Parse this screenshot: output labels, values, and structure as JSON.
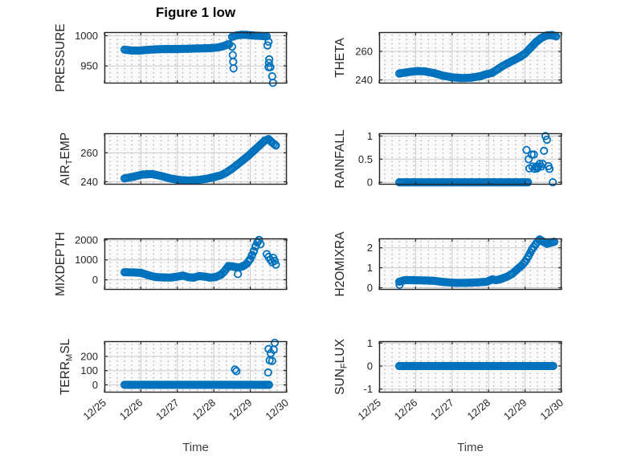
{
  "figure": {
    "title": "Figure 1 low",
    "colors": {
      "marker": "#0072BD",
      "axis": "#262626",
      "grid": "#cccccc"
    },
    "x_axis": {
      "label": "Time",
      "lim": [
        25,
        30
      ],
      "ticks": [
        {
          "v": 25,
          "label": "12/25"
        },
        {
          "v": 26,
          "label": "12/26"
        },
        {
          "v": 27,
          "label": "12/27"
        },
        {
          "v": 28,
          "label": "12/28"
        },
        {
          "v": 29,
          "label": "12/29"
        },
        {
          "v": 30,
          "label": "12/30"
        }
      ]
    }
  },
  "chart_data": [
    {
      "type": "scatter",
      "name": "PRESSURE",
      "ylabel_parts": [
        {
          "t": "PRESSURE"
        }
      ],
      "ylim": [
        921,
        1006
      ],
      "yticks": [
        {
          "v": 950,
          "label": "950"
        },
        {
          "v": 1000,
          "label": "1000"
        }
      ],
      "show_x": false,
      "trend": [
        [
          [
            25.55,
            977
          ],
          [
            25.75,
            975.5
          ],
          [
            25.95,
            975.5
          ],
          [
            26.15,
            976.5
          ],
          [
            26.4,
            977.5
          ],
          [
            26.7,
            978
          ],
          [
            27.0,
            978
          ],
          [
            27.3,
            978.5
          ],
          [
            27.6,
            979
          ],
          [
            27.9,
            979.5
          ],
          [
            28.1,
            980.5
          ],
          [
            28.25,
            982.5
          ],
          [
            28.38,
            985.5
          ],
          [
            28.42,
            986
          ]
        ],
        [
          [
            28.5,
            998
          ],
          [
            28.62,
            1000.5
          ],
          [
            28.75,
            1001.5
          ],
          [
            28.9,
            1001.5
          ],
          [
            29.05,
            1000.5
          ],
          [
            29.2,
            1000
          ],
          [
            29.35,
            999.5
          ],
          [
            29.45,
            999
          ]
        ]
      ],
      "points": [
        [
          28.5,
          982
        ],
        [
          28.52,
          968
        ],
        [
          28.53,
          957
        ],
        [
          28.54,
          946
        ],
        [
          29.47,
          984
        ],
        [
          29.5,
          990
        ],
        [
          29.52,
          961
        ],
        [
          29.51,
          955
        ],
        [
          29.55,
          948
        ],
        [
          29.5,
          948
        ],
        [
          29.6,
          933
        ],
        [
          29.62,
          922
        ]
      ]
    },
    {
      "type": "scatter",
      "name": "THETA",
      "ylabel_parts": [
        {
          "t": "THETA"
        }
      ],
      "ylim": [
        237.5,
        273.5
      ],
      "yticks": [
        {
          "v": 240,
          "label": "240"
        },
        {
          "v": 260,
          "label": "260"
        }
      ],
      "show_x": false,
      "trend": [
        [
          [
            25.55,
            244.5
          ],
          [
            25.8,
            245.5
          ],
          [
            26.05,
            246.2
          ],
          [
            26.25,
            246
          ],
          [
            26.5,
            244.8
          ],
          [
            26.75,
            243
          ],
          [
            27.0,
            241.8
          ],
          [
            27.25,
            241.3
          ],
          [
            27.5,
            241.5
          ],
          [
            27.75,
            242.5
          ],
          [
            27.95,
            244
          ],
          [
            28.1,
            245
          ],
          [
            28.25,
            247.5
          ],
          [
            28.4,
            250
          ],
          [
            28.55,
            252
          ],
          [
            28.7,
            254
          ],
          [
            28.85,
            256
          ],
          [
            29.0,
            258.5
          ],
          [
            29.15,
            262.5
          ],
          [
            29.3,
            266.5
          ],
          [
            29.45,
            269.5
          ],
          [
            29.6,
            271.2
          ],
          [
            29.75,
            271.5
          ],
          [
            29.85,
            270.5
          ]
        ]
      ],
      "points": []
    },
    {
      "type": "scatter",
      "name": "AIR_TEMP",
      "ylabel_parts": [
        {
          "t": "AIR"
        },
        {
          "t": "T",
          "sub": true
        },
        {
          "t": "EMP"
        }
      ],
      "ylim": [
        238,
        273.5
      ],
      "yticks": [
        {
          "v": 240,
          "label": "240"
        },
        {
          "v": 260,
          "label": "260"
        }
      ],
      "show_x": false,
      "trend": [
        [
          [
            25.55,
            242.3
          ],
          [
            25.8,
            243.5
          ],
          [
            26.05,
            245
          ],
          [
            26.3,
            245.3
          ],
          [
            26.55,
            244
          ],
          [
            26.8,
            242.3
          ],
          [
            27.05,
            241.2
          ],
          [
            27.3,
            240.8
          ],
          [
            27.55,
            241.2
          ],
          [
            27.8,
            242
          ],
          [
            28.0,
            243.2
          ],
          [
            28.2,
            244.5
          ],
          [
            28.35,
            246.5
          ],
          [
            28.5,
            249
          ],
          [
            28.65,
            252
          ],
          [
            28.8,
            255
          ],
          [
            28.95,
            258
          ],
          [
            29.1,
            261.5
          ],
          [
            29.25,
            265
          ],
          [
            29.4,
            268.5
          ],
          [
            29.5,
            269.5
          ],
          [
            29.6,
            267
          ],
          [
            29.7,
            265
          ]
        ]
      ],
      "points": []
    },
    {
      "type": "scatter",
      "name": "RAINFALL",
      "ylabel_parts": [
        {
          "t": "RAINFALL"
        }
      ],
      "ylim": [
        -0.05,
        1.06
      ],
      "yticks": [
        {
          "v": 0,
          "label": "0"
        },
        {
          "v": 0.5,
          "label": "0.5"
        },
        {
          "v": 1,
          "label": "1"
        }
      ],
      "show_x": false,
      "trend": [
        [
          [
            25.55,
            0
          ],
          [
            29.08,
            0
          ]
        ]
      ],
      "points": [
        [
          29.04,
          0.7
        ],
        [
          29.1,
          0.5
        ],
        [
          29.12,
          0.3
        ],
        [
          29.18,
          0.6
        ],
        [
          29.2,
          0.34
        ],
        [
          29.24,
          0.6
        ],
        [
          29.26,
          0.29
        ],
        [
          29.3,
          0.34
        ],
        [
          29.33,
          0.3
        ],
        [
          29.36,
          0.34
        ],
        [
          29.4,
          0.4
        ],
        [
          29.44,
          0.34
        ],
        [
          29.48,
          0.4
        ],
        [
          29.52,
          0.68
        ],
        [
          29.56,
          1.0
        ],
        [
          29.6,
          0.92
        ],
        [
          29.64,
          0.35
        ],
        [
          29.67,
          0.29
        ],
        [
          29.76,
          0
        ]
      ]
    },
    {
      "type": "scatter",
      "name": "MIXDEPTH",
      "ylabel_parts": [
        {
          "t": "MIXDEPTH"
        }
      ],
      "ylim": [
        -500,
        2075
      ],
      "yticks": [
        {
          "v": 0,
          "label": "0"
        },
        {
          "v": 1000,
          "label": "1000"
        },
        {
          "v": 2000,
          "label": "2000"
        }
      ],
      "show_x": false,
      "trend": [
        [
          [
            25.55,
            380
          ],
          [
            25.8,
            370
          ],
          [
            26.0,
            350
          ],
          [
            26.2,
            230
          ],
          [
            26.4,
            140
          ],
          [
            26.6,
            120
          ],
          [
            26.8,
            110
          ],
          [
            27.0,
            160
          ],
          [
            27.15,
            210
          ],
          [
            27.3,
            130
          ],
          [
            27.45,
            110
          ],
          [
            27.6,
            190
          ],
          [
            27.75,
            160
          ],
          [
            27.9,
            110
          ],
          [
            28.05,
            140
          ],
          [
            28.2,
            260
          ],
          [
            28.3,
            450
          ],
          [
            28.4,
            690
          ],
          [
            28.5,
            670
          ],
          [
            28.6,
            640
          ],
          [
            28.7,
            620
          ],
          [
            28.8,
            680
          ],
          [
            28.9,
            800
          ],
          [
            29.0,
            1050
          ],
          [
            29.05,
            1250
          ],
          [
            29.1,
            1450
          ],
          [
            29.15,
            1700
          ],
          [
            29.2,
            1900
          ],
          [
            29.24,
            2000
          ]
        ]
      ],
      "points": [
        [
          28.66,
          290
        ],
        [
          29.28,
          1780
        ],
        [
          29.45,
          1290
        ],
        [
          29.5,
          1150
        ],
        [
          29.55,
          1000
        ],
        [
          29.6,
          880
        ],
        [
          29.63,
          1100
        ],
        [
          29.67,
          950
        ],
        [
          29.7,
          760
        ]
      ]
    },
    {
      "type": "scatter",
      "name": "H2OMIXRA",
      "ylabel_parts": [
        {
          "t": "H2OMIXRA"
        }
      ],
      "ylim": [
        -0.1,
        2.47
      ],
      "yticks": [
        {
          "v": 0,
          "label": "0"
        },
        {
          "v": 1,
          "label": "1"
        },
        {
          "v": 2,
          "label": "2"
        }
      ],
      "show_x": false,
      "trend": [
        [
          [
            25.55,
            0.3
          ],
          [
            25.7,
            0.38
          ],
          [
            25.9,
            0.38
          ],
          [
            26.2,
            0.37
          ],
          [
            26.5,
            0.35
          ],
          [
            26.8,
            0.28
          ],
          [
            27.1,
            0.25
          ],
          [
            27.4,
            0.25
          ],
          [
            27.7,
            0.27
          ],
          [
            27.95,
            0.3
          ],
          [
            28.1,
            0.42
          ],
          [
            28.2,
            0.38
          ],
          [
            28.35,
            0.45
          ],
          [
            28.5,
            0.55
          ],
          [
            28.65,
            0.7
          ],
          [
            28.8,
            0.95
          ],
          [
            28.9,
            1.1
          ],
          [
            29.0,
            1.3
          ],
          [
            29.1,
            1.6
          ],
          [
            29.2,
            1.95
          ],
          [
            29.3,
            2.2
          ],
          [
            29.4,
            2.42
          ],
          [
            29.5,
            2.3
          ],
          [
            29.6,
            2.2
          ],
          [
            29.7,
            2.25
          ],
          [
            29.8,
            2.3
          ]
        ]
      ],
      "points": [
        [
          25.56,
          0.15
        ]
      ]
    },
    {
      "type": "scatter",
      "name": "TERR_MSL",
      "ylabel_parts": [
        {
          "t": "TERR"
        },
        {
          "t": "M",
          "sub": true
        },
        {
          "t": "SL"
        }
      ],
      "ylim": [
        -54,
        307
      ],
      "yticks": [
        {
          "v": 0,
          "label": "0"
        },
        {
          "v": 100,
          "label": "100"
        },
        {
          "v": 200,
          "label": "200"
        }
      ],
      "show_x": true,
      "trend": [
        [
          [
            25.55,
            0
          ],
          [
            29.51,
            0
          ]
        ]
      ],
      "points": [
        [
          28.58,
          108
        ],
        [
          28.62,
          96
        ],
        [
          29.49,
          87
        ],
        [
          29.53,
          172
        ],
        [
          29.6,
          168
        ],
        [
          29.56,
          222
        ],
        [
          29.5,
          252
        ],
        [
          29.64,
          247
        ],
        [
          29.67,
          295
        ]
      ]
    },
    {
      "type": "scatter",
      "name": "SUN_FLUX",
      "ylabel_parts": [
        {
          "t": "SUN"
        },
        {
          "t": "F",
          "sub": true
        },
        {
          "t": "LUX"
        }
      ],
      "ylim": [
        -1.15,
        1.08
      ],
      "yticks": [
        {
          "v": -1,
          "label": "-1"
        },
        {
          "v": 0,
          "label": "0"
        },
        {
          "v": 1,
          "label": "1"
        }
      ],
      "show_x": true,
      "trend": [
        [
          [
            25.55,
            0
          ],
          [
            29.77,
            0
          ]
        ]
      ],
      "points": []
    }
  ]
}
